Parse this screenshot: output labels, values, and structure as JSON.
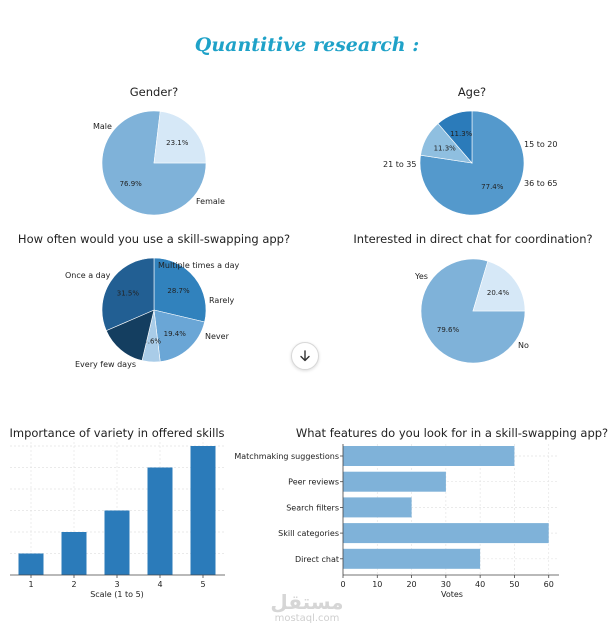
{
  "page": {
    "title": "Quantitive research :",
    "watermark_ar": "مستقل",
    "watermark_en": "mostaql.com"
  },
  "chart_data": [
    {
      "id": "gender",
      "type": "pie",
      "title": "Gender?",
      "slices": [
        {
          "label": "Male",
          "value": 76.9,
          "pct_label": "76.9%",
          "color": "#7fb2d9"
        },
        {
          "label": "Female",
          "value": 23.1,
          "pct_label": "23.1%",
          "color": "#d6e8f7"
        }
      ]
    },
    {
      "id": "age",
      "type": "pie",
      "title": "Age?",
      "slices": [
        {
          "label": "21 to 35",
          "value": 77.4,
          "pct_label": "77.4%",
          "color": "#5499cc"
        },
        {
          "label": "15 to 20",
          "value": 11.3,
          "pct_label": "11.3%",
          "color": "#8fbfe0"
        },
        {
          "label": "36 to 65",
          "value": 11.3,
          "pct_label": "11.3%",
          "color": "#2b7bba"
        }
      ]
    },
    {
      "id": "frequency",
      "type": "pie",
      "title": "How often would you use a skill-swapping app?",
      "slices": [
        {
          "label": "Once a day",
          "value": 28.7,
          "pct_label": "28.7%",
          "color": "#3182bd"
        },
        {
          "label": "Multiple times a day",
          "value": 19.4,
          "pct_label": "19.4%",
          "color": "#6aa6d6"
        },
        {
          "label": "Rarely",
          "value": 5.6,
          "pct_label": "5.6%",
          "color": "#a9cce8"
        },
        {
          "label": "Never",
          "value": 14.8,
          "pct_label": "",
          "color": "#143e60"
        },
        {
          "label": "Every few days",
          "value": 31.5,
          "pct_label": "31.5%",
          "color": "#225f93"
        }
      ]
    },
    {
      "id": "direct_chat",
      "type": "pie",
      "title": "Interested in direct chat for coordination?",
      "slices": [
        {
          "label": "Yes",
          "value": 79.6,
          "pct_label": "79.6%",
          "color": "#7fb2d9"
        },
        {
          "label": "No",
          "value": 20.4,
          "pct_label": "20.4%",
          "color": "#d6e8f7"
        }
      ]
    },
    {
      "id": "variety",
      "type": "bar",
      "title": "Importance of variety in offered skills",
      "xlabel": "Scale (1 to 5)",
      "ylabel": "",
      "categories": [
        "1",
        "2",
        "3",
        "4",
        "5"
      ],
      "values": [
        10,
        20,
        30,
        50,
        60
      ],
      "ylim": [
        0,
        60
      ],
      "grid": true,
      "color": "#2b7bba"
    },
    {
      "id": "features",
      "type": "bar",
      "orientation": "horizontal",
      "title": "What features do you look for in a skill-swapping app?",
      "xlabel": "Votes",
      "ylabel": "",
      "categories": [
        "Matchmaking suggestions",
        "Peer reviews",
        "Search filters",
        "Skill categories",
        "Direct chat"
      ],
      "values": [
        50,
        30,
        20,
        60,
        40
      ],
      "xlim": [
        0,
        63
      ],
      "xticks": [
        "0",
        "10",
        "20",
        "30",
        "40",
        "50",
        "60"
      ],
      "grid": true,
      "color": "#7fb2d9"
    }
  ]
}
